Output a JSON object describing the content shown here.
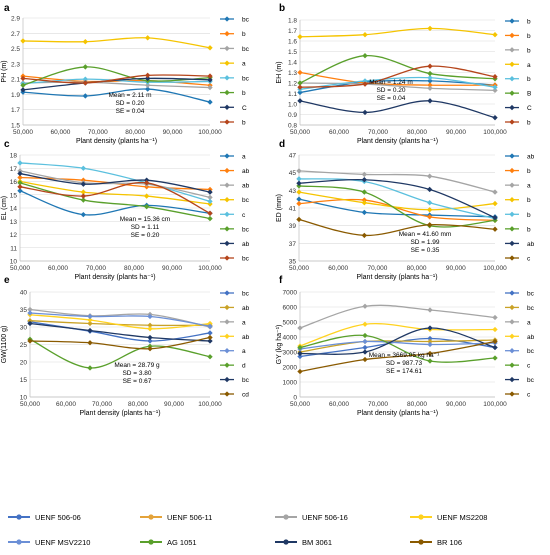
{
  "x_label": "Plant density (plants ha⁻¹)",
  "x_ticks": [
    "50,000",
    "60,000",
    "70,000",
    "80,000",
    "90,000",
    "100,000"
  ],
  "legend": [
    {
      "name": "UENF 506-06",
      "color": "#4472c4"
    },
    {
      "name": "UENF 506-11",
      "color": "#e4a33a"
    },
    {
      "name": "UENF 506-16",
      "color": "#a5a5a5"
    },
    {
      "name": "UENF MS2208",
      "color": "#ffd21f"
    },
    {
      "name": "UENF MSV2210",
      "color": "#6b8fd6"
    },
    {
      "name": "AG 1051",
      "color": "#5aa02c"
    },
    {
      "name": "BM 3061",
      "color": "#1f3864"
    },
    {
      "name": "BR 106",
      "color": "#8a5a00"
    }
  ],
  "chart_data": [
    {
      "type": "line",
      "panel": "a",
      "ylabel": "PH (m)",
      "ylim": [
        1.5,
        2.9
      ],
      "yticks": [
        "1.5",
        "1.7",
        "1.9",
        "2.1",
        "2.3",
        "2.5",
        "2.7",
        "2.9"
      ],
      "x": [
        50000,
        66667,
        83333,
        100000
      ],
      "stats": [
        "Mean = 2.11 m",
        "SD = 0.20",
        "SE = 0.04"
      ],
      "colors": [
        "#1f77b4",
        "#ff7f0e",
        "#a5a5a5",
        "#f5c400",
        "#5bc0de",
        "#5aa02c",
        "#1f3864",
        "#b5451b"
      ],
      "series": [
        {
          "values": [
            1.93,
            1.88,
            1.97,
            1.8
          ],
          "letter": "bc"
        },
        {
          "values": [
            2.14,
            2.07,
            2.08,
            2.02
          ],
          "letter": "b"
        },
        {
          "values": [
            2.05,
            2.06,
            2.02,
            1.99
          ],
          "letter": "bc"
        },
        {
          "values": [
            2.6,
            2.59,
            2.64,
            2.51
          ],
          "letter": "a"
        },
        {
          "values": [
            2.04,
            2.1,
            2.06,
            2.07
          ],
          "letter": "bc"
        },
        {
          "values": [
            2.02,
            2.26,
            2.08,
            2.12
          ],
          "letter": "b"
        },
        {
          "values": [
            1.96,
            2.05,
            2.11,
            2.09
          ],
          "letter": "C"
        },
        {
          "values": [
            2.11,
            2.05,
            2.15,
            2.14
          ],
          "letter": "b"
        }
      ]
    },
    {
      "type": "line",
      "panel": "b",
      "ylabel": "EH (m)",
      "ylim": [
        0.8,
        1.8
      ],
      "yticks": [
        "0.8",
        "0.9",
        "1.0",
        "1.1",
        "1.2",
        "1.3",
        "1.4",
        "1.5",
        "1.6",
        "1.7",
        "1.8"
      ],
      "x": [
        50000,
        66667,
        83333,
        100000
      ],
      "stats": [
        "Mean = 1.24 m",
        "SD = 0.20",
        "SE = 0.04"
      ],
      "colors": [
        "#1f77b4",
        "#ff7f0e",
        "#a5a5a5",
        "#f5c400",
        "#5bc0de",
        "#5aa02c",
        "#1f3864",
        "#b5451b"
      ],
      "series": [
        {
          "values": [
            1.11,
            1.21,
            1.22,
            1.18
          ],
          "letter": "b"
        },
        {
          "values": [
            1.3,
            1.2,
            1.18,
            1.18
          ],
          "letter": "b"
        },
        {
          "values": [
            1.2,
            1.19,
            1.15,
            1.13
          ],
          "letter": "b"
        },
        {
          "values": [
            1.64,
            1.66,
            1.72,
            1.66
          ],
          "letter": "a"
        },
        {
          "values": [
            1.14,
            1.22,
            1.25,
            1.16
          ],
          "letter": "b"
        },
        {
          "values": [
            1.2,
            1.46,
            1.29,
            1.24
          ],
          "letter": "B"
        },
        {
          "values": [
            1.03,
            0.92,
            1.03,
            0.87
          ],
          "letter": "C"
        },
        {
          "values": [
            1.16,
            1.19,
            1.36,
            1.26
          ],
          "letter": "b"
        }
      ]
    },
    {
      "type": "line",
      "panel": "c",
      "ylabel": "EL (cm)",
      "ylim": [
        10,
        18
      ],
      "yticks": [
        "10",
        "11",
        "12",
        "13",
        "14",
        "15",
        "16",
        "17",
        "18"
      ],
      "x": [
        50000,
        66667,
        83333,
        100000
      ],
      "stats": [
        "Mean = 15.36 cm",
        "SD = 1.11",
        "SE = 0.20"
      ],
      "colors": [
        "#1f77b4",
        "#ff7f0e",
        "#a5a5a5",
        "#f5c400",
        "#5bc0de",
        "#5aa02c",
        "#1f3864",
        "#b5451b"
      ],
      "series": [
        {
          "values": [
            15.3,
            13.5,
            14.2,
            13.6
          ],
          "letter": "a"
        },
        {
          "values": [
            16.3,
            16.1,
            15.6,
            15.4
          ],
          "letter": "ab"
        },
        {
          "values": [
            16.8,
            15.9,
            15.8,
            14.8
          ],
          "letter": "ab"
        },
        {
          "values": [
            16.0,
            15.2,
            14.9,
            14.3
          ],
          "letter": "bc"
        },
        {
          "values": [
            17.4,
            17.0,
            15.9,
            14.5
          ],
          "letter": "c"
        },
        {
          "values": [
            15.9,
            14.6,
            14.1,
            13.2
          ],
          "letter": "bc"
        },
        {
          "values": [
            16.6,
            15.8,
            16.1,
            15.2
          ],
          "letter": "ab"
        },
        {
          "values": [
            15.6,
            14.9,
            15.9,
            13.6
          ],
          "letter": "bc"
        }
      ]
    },
    {
      "type": "line",
      "panel": "d",
      "ylabel": "ED (mm)",
      "ylim": [
        35,
        47
      ],
      "yticks": [
        "35",
        "37",
        "39",
        "41",
        "43",
        "45",
        "47"
      ],
      "x": [
        50000,
        66667,
        83333,
        100000
      ],
      "stats": [
        "Mean = 41.60 mm",
        "SD = 1.99",
        "SE = 0.35"
      ],
      "colors": [
        "#1f77b4",
        "#ff7f0e",
        "#a5a5a5",
        "#f5c400",
        "#5bc0de",
        "#5aa02c",
        "#1f3864",
        "#8a5a00"
      ],
      "series": [
        {
          "values": [
            42.0,
            40.5,
            40.2,
            40.0
          ],
          "letter": "ab"
        },
        {
          "values": [
            41.5,
            41.9,
            40.0,
            39.6
          ],
          "letter": "b"
        },
        {
          "values": [
            45.2,
            44.8,
            44.6,
            42.8
          ],
          "letter": "a"
        },
        {
          "values": [
            42.8,
            41.6,
            40.8,
            41.5
          ],
          "letter": "b"
        },
        {
          "values": [
            44.3,
            44.0,
            41.6,
            39.8
          ],
          "letter": "b"
        },
        {
          "values": [
            43.5,
            42.8,
            39.0,
            39.6
          ],
          "letter": "b"
        },
        {
          "values": [
            43.8,
            44.2,
            43.1,
            39.9
          ],
          "letter": "ab"
        },
        {
          "values": [
            39.7,
            37.9,
            39.1,
            38.6
          ],
          "letter": "c"
        }
      ]
    },
    {
      "type": "line",
      "panel": "e",
      "ylabel": "GW(1100 g)",
      "ylim": [
        10,
        40
      ],
      "yticks": [
        "10",
        "15",
        "20",
        "25",
        "30",
        "35",
        "40"
      ],
      "x": [
        50000,
        66667,
        83333,
        100000
      ],
      "stats": [
        "Mean = 28.79 g",
        "SD = 3.80",
        "SE = 0.67"
      ],
      "colors": [
        "#4472c4",
        "#c9a227",
        "#a5a5a5",
        "#ffd21f",
        "#6b8fd6",
        "#5aa02c",
        "#1f3864",
        "#8a5a00"
      ],
      "series": [
        {
          "values": [
            31.5,
            28.8,
            26.0,
            28.3
          ],
          "letter": "bc"
        },
        {
          "values": [
            31.8,
            31.0,
            30.5,
            30.5
          ],
          "letter": "ab"
        },
        {
          "values": [
            35.0,
            33.2,
            33.6,
            30.0
          ],
          "letter": "a"
        },
        {
          "values": [
            33.5,
            32.0,
            29.5,
            31.0
          ],
          "letter": "ab"
        },
        {
          "values": [
            34.0,
            33.0,
            33.0,
            30.2
          ],
          "letter": "a"
        },
        {
          "values": [
            26.5,
            18.3,
            24.5,
            21.5
          ],
          "letter": "d"
        },
        {
          "values": [
            31.0,
            29.0,
            27.0,
            26.0
          ],
          "letter": "bc"
        },
        {
          "values": [
            26.0,
            25.5,
            23.8,
            27.0
          ],
          "letter": "cd"
        }
      ]
    },
    {
      "type": "line",
      "panel": "f",
      "ylabel": "GY (kg ha⁻¹)",
      "ylim": [
        0,
        7000
      ],
      "yticks": [
        "0",
        "1000",
        "2000",
        "3000",
        "4000",
        "5000",
        "6000",
        "7000"
      ],
      "x": [
        50000,
        66667,
        83333,
        100000
      ],
      "stats": [
        "Mean = 3669.05 kg ha⁻¹",
        "SD = 987.73",
        "SE = 174.61"
      ],
      "colors": [
        "#4472c4",
        "#c9a227",
        "#a5a5a5",
        "#ffd21f",
        "#6b8fd6",
        "#5aa02c",
        "#1f3864",
        "#8a5a00"
      ],
      "series": [
        {
          "values": [
            2700,
            3300,
            3900,
            3300
          ],
          "letter": "bc"
        },
        {
          "values": [
            3000,
            3700,
            3700,
            3800
          ],
          "letter": "bc"
        },
        {
          "values": [
            4600,
            6050,
            5800,
            5300
          ],
          "letter": "a"
        },
        {
          "values": [
            3400,
            4850,
            4500,
            4500
          ],
          "letter": "ab"
        },
        {
          "values": [
            3200,
            3700,
            3500,
            3600
          ],
          "letter": "bc"
        },
        {
          "values": [
            3300,
            4100,
            2400,
            2600
          ],
          "letter": "c"
        },
        {
          "values": [
            2900,
            3000,
            4600,
            3300
          ],
          "letter": "bc"
        },
        {
          "values": [
            1700,
            2500,
            2900,
            3700
          ],
          "letter": "c"
        }
      ]
    }
  ]
}
